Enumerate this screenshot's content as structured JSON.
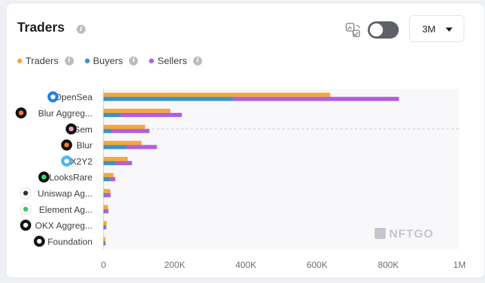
{
  "header": {
    "title": "Traders",
    "timeframe": "3M",
    "icons": {
      "info": "info-icon",
      "swap": "image-swap-icon",
      "toggle": "toggle-switch",
      "caret": "chevron-down-icon"
    }
  },
  "legend": [
    {
      "label": "Traders",
      "color": "#f7a736"
    },
    {
      "label": "Buyers",
      "color": "#3b93c9"
    },
    {
      "label": "Sellers",
      "color": "#b05ee0"
    }
  ],
  "watermark": "NFTGO",
  "chart_data": {
    "type": "bar",
    "orientation": "horizontal",
    "categories": [
      "OpenSea",
      "Blur Aggreg...",
      "Gem",
      "Blur",
      "X2Y2",
      "LooksRare",
      "Uniswap Ag...",
      "Element Ag...",
      "OKX Aggreg...",
      "Foundation"
    ],
    "category_icons": [
      "opensea-logo-icon",
      "blur-aggregator-logo-icon",
      "gem-logo-icon",
      "blur-logo-icon",
      "x2y2-logo-icon",
      "looksrare-logo-icon",
      "uniswap-logo-icon",
      "element-logo-icon",
      "okx-logo-icon",
      "foundation-logo-icon"
    ],
    "series": [
      {
        "name": "Traders",
        "color": "#f7a736",
        "values": [
          637000,
          188000,
          117000,
          107000,
          68000,
          28000,
          19000,
          13000,
          9000,
          5000
        ]
      },
      {
        "name": "Buyers",
        "color": "#3b93c9",
        "values": [
          365000,
          48000,
          24000,
          65000,
          33000,
          19000,
          5000,
          3000,
          3000,
          3000
        ]
      },
      {
        "name": "Sellers",
        "color": "#b05ee0",
        "values": [
          465000,
          172000,
          105000,
          85000,
          47000,
          14000,
          15000,
          11000,
          5000,
          3000
        ]
      }
    ],
    "xlim": [
      0,
      1000000
    ],
    "x_ticks": [
      "0",
      "200K",
      "400K",
      "600K",
      "800K",
      "1M"
    ],
    "legend_position": "top-left"
  }
}
